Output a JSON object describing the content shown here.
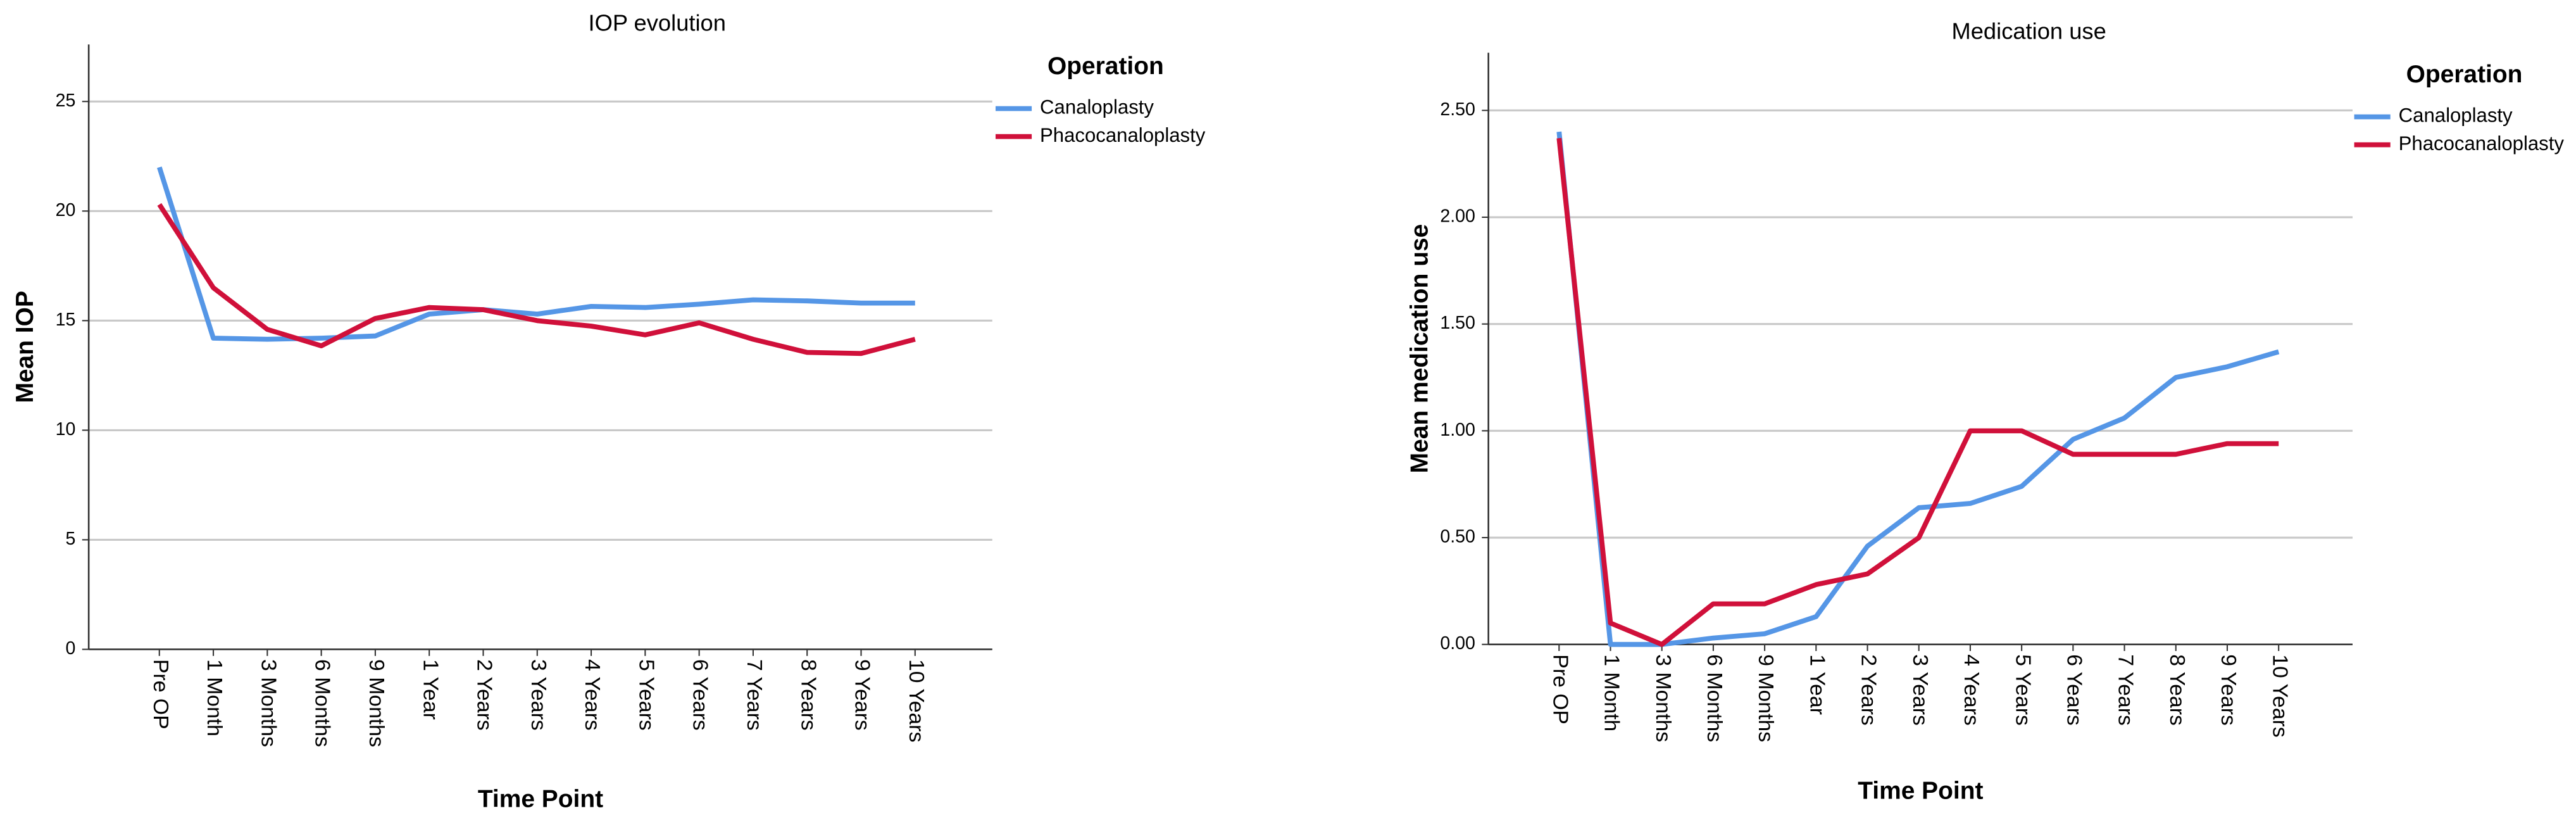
{
  "chart_data": [
    {
      "type": "line",
      "title": "IOP evolution",
      "x_label": "Time Point",
      "y_label": "Mean IOP",
      "legend_title": "Operation",
      "legend": "right",
      "grid": true,
      "categories": [
        "Pre OP",
        "1 Month",
        "3 Months",
        "6 Months",
        "9 Months",
        "1 Year",
        "2 Years",
        "3 Years",
        "4 Years",
        "5 Years",
        "6 Years",
        "7 Years",
        "8 Years",
        "9 Years",
        "10 Years"
      ],
      "series": [
        {
          "name": "Canaloplasty",
          "color": "#5596e6",
          "values": [
            22.0,
            14.2,
            14.15,
            14.2,
            14.3,
            15.3,
            15.5,
            15.3,
            15.65,
            15.6,
            15.75,
            15.95,
            15.9,
            15.8,
            15.8
          ]
        },
        {
          "name": "Phacocanaloplasty",
          "color": "#d0103a",
          "values": [
            20.3,
            16.5,
            14.6,
            13.85,
            15.1,
            15.6,
            15.5,
            15.0,
            14.75,
            14.35,
            14.9,
            14.15,
            13.55,
            13.5,
            14.15
          ]
        }
      ],
      "ylim": [
        0,
        27.6
      ],
      "yticks": [
        0,
        5,
        10,
        15,
        20,
        25
      ]
    },
    {
      "type": "line",
      "title": "Medication use",
      "x_label": "Time Point",
      "y_label": "Mean medication use",
      "legend_title": "Operation",
      "legend": "right",
      "grid": true,
      "categories": [
        "Pre OP",
        "1 Month",
        "3 Months",
        "6 Months",
        "9 Months",
        "1 Year",
        "2 Years",
        "3 Years",
        "4 Years",
        "5 Years",
        "6 Years",
        "7 Years",
        "8 Years",
        "9 Years",
        "10 Years"
      ],
      "series": [
        {
          "name": "Canaloplasty",
          "color": "#5596e6",
          "values": [
            2.4,
            0.0,
            0.0,
            0.03,
            0.05,
            0.13,
            0.46,
            0.64,
            0.66,
            0.74,
            0.96,
            1.06,
            1.25,
            1.3,
            1.37
          ]
        },
        {
          "name": "Phacocanaloplasty",
          "color": "#d0103a",
          "values": [
            2.37,
            0.1,
            0.0,
            0.19,
            0.19,
            0.28,
            0.33,
            0.5,
            1.0,
            1.0,
            0.89,
            0.89,
            0.89,
            0.94,
            0.94
          ]
        }
      ],
      "ylim": [
        0,
        2.77
      ],
      "yticks": [
        {
          "value": 0,
          "label": "0.00"
        },
        {
          "value": 0.5,
          "label": "0.50"
        },
        {
          "value": 1,
          "label": "1.00"
        },
        {
          "value": 1.5,
          "label": "1.50"
        },
        {
          "value": 2,
          "label": "2.00"
        },
        {
          "value": 2.5,
          "label": "2.50"
        }
      ]
    }
  ]
}
